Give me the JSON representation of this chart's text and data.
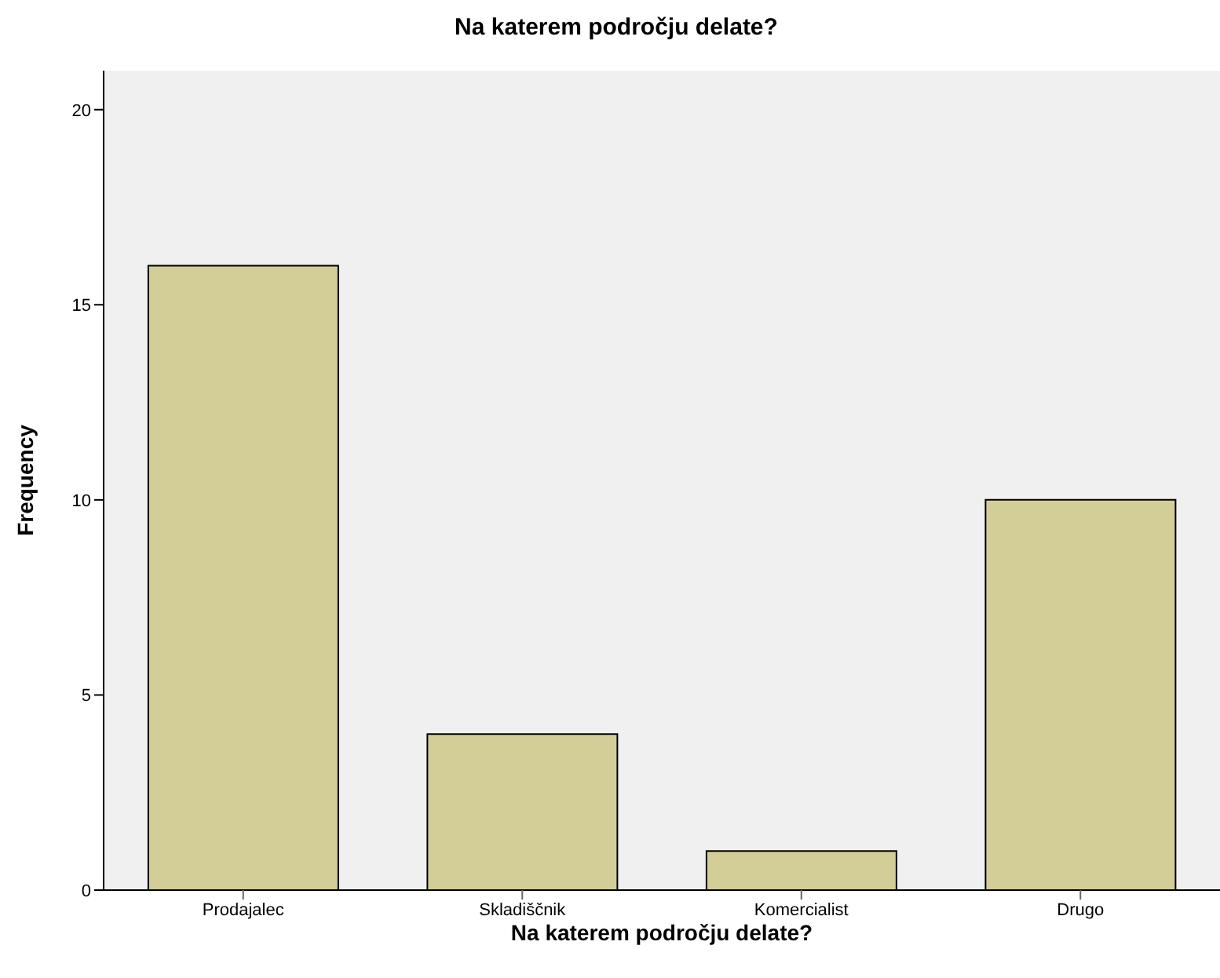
{
  "chart_data": {
    "type": "bar",
    "title": "Na katerem področju delate?",
    "xlabel": "Na katerem področju delate?",
    "ylabel": "Frequency",
    "categories": [
      "Prodajalec",
      "Skladiščnik",
      "Komercialist",
      "Drugo"
    ],
    "values": [
      16,
      4,
      1,
      10
    ],
    "color": "#d3ce97",
    "ylim": [
      0,
      21
    ],
    "yticks": [
      0,
      5,
      10,
      15,
      20
    ],
    "grid": false,
    "legend": false
  }
}
